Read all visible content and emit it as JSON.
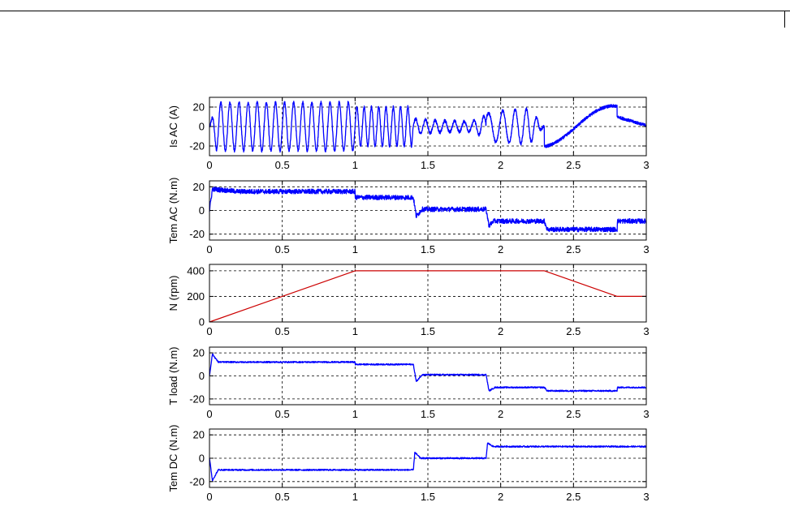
{
  "chart_data": [
    {
      "type": "line",
      "ylabel": "Is AC (A)",
      "xlim": [
        0,
        3
      ],
      "ylim": [
        -30,
        30
      ],
      "xticks": [
        "0",
        "0.5",
        "1",
        "1.5",
        "2",
        "2.5",
        "3"
      ],
      "yticks": [
        "20",
        "0",
        "-20"
      ],
      "grid": true,
      "color": "#0000ff",
      "series": [
        {
          "values": [
            {
              "x": 0,
              "y": 0
            },
            {
              "x": 0.05,
              "y": 25
            },
            {
              "x": 0.1,
              "y": 25
            },
            {
              "x": 0.3,
              "y": 25
            },
            {
              "x": 0.6,
              "y": 25
            },
            {
              "x": 0.99,
              "y": 25
            },
            {
              "x": 1.0,
              "y": 20
            },
            {
              "x": 1.2,
              "y": 20
            },
            {
              "x": 1.39,
              "y": 20
            },
            {
              "x": 1.4,
              "y": 8
            },
            {
              "x": 1.6,
              "y": 6
            },
            {
              "x": 1.8,
              "y": 5
            },
            {
              "x": 1.95,
              "y": 16
            },
            {
              "x": 2.2,
              "y": 18
            },
            {
              "x": 2.4,
              "y": -20
            },
            {
              "x": 2.65,
              "y": 21
            },
            {
              "x": 2.8,
              "y": 18
            },
            {
              "x": 2.85,
              "y": 10
            },
            {
              "x": 3.0,
              "y": 0
            }
          ]
        }
      ]
    },
    {
      "type": "line",
      "ylabel": "Tem AC (N.m)",
      "xlim": [
        0,
        3
      ],
      "ylim": [
        -25,
        25
      ],
      "xticks": [
        "0",
        "0.5",
        "1",
        "1.5",
        "2",
        "2.5",
        "3"
      ],
      "yticks": [
        "20",
        "0",
        "-20"
      ],
      "grid": true,
      "color": "#0000ff",
      "series": [
        {
          "values": [
            {
              "x": 0,
              "y": 0
            },
            {
              "x": 0.02,
              "y": 18
            },
            {
              "x": 0.2,
              "y": 16
            },
            {
              "x": 1.0,
              "y": 16
            },
            {
              "x": 1.0,
              "y": 11
            },
            {
              "x": 1.4,
              "y": 11
            },
            {
              "x": 1.42,
              "y": -5
            },
            {
              "x": 1.46,
              "y": 1
            },
            {
              "x": 1.9,
              "y": 1
            },
            {
              "x": 1.92,
              "y": -13
            },
            {
              "x": 1.95,
              "y": -9
            },
            {
              "x": 2.3,
              "y": -9
            },
            {
              "x": 2.32,
              "y": -16
            },
            {
              "x": 2.8,
              "y": -16
            },
            {
              "x": 2.8,
              "y": -9
            },
            {
              "x": 3.0,
              "y": -9
            }
          ]
        }
      ]
    },
    {
      "type": "line",
      "ylabel": "N (rpm)",
      "xlim": [
        0,
        3
      ],
      "ylim": [
        0,
        450
      ],
      "xticks": [
        "0",
        "0.5",
        "1",
        "1.5",
        "2",
        "2.5",
        "3"
      ],
      "yticks": [
        "400",
        "200",
        "0"
      ],
      "grid": true,
      "color": "#cc0000",
      "series": [
        {
          "values": [
            {
              "x": 0,
              "y": 0
            },
            {
              "x": 1.0,
              "y": 400
            },
            {
              "x": 2.3,
              "y": 400
            },
            {
              "x": 2.8,
              "y": 200
            },
            {
              "x": 3.0,
              "y": 200
            }
          ]
        }
      ]
    },
    {
      "type": "line",
      "ylabel": "T load (N.m)",
      "xlim": [
        0,
        3
      ],
      "ylim": [
        -25,
        25
      ],
      "xticks": [
        "0",
        "0.5",
        "1",
        "1.5",
        "2",
        "2.5",
        "3"
      ],
      "yticks": [
        "20",
        "0",
        "-20"
      ],
      "grid": true,
      "color": "#0000ff",
      "series": [
        {
          "values": [
            {
              "x": 0,
              "y": 0
            },
            {
              "x": 0.02,
              "y": 19
            },
            {
              "x": 0.06,
              "y": 12
            },
            {
              "x": 1.0,
              "y": 12
            },
            {
              "x": 1.0,
              "y": 10
            },
            {
              "x": 1.4,
              "y": 10
            },
            {
              "x": 1.42,
              "y": -5
            },
            {
              "x": 1.46,
              "y": 1
            },
            {
              "x": 1.9,
              "y": 1
            },
            {
              "x": 1.92,
              "y": -13
            },
            {
              "x": 1.96,
              "y": -10
            },
            {
              "x": 2.3,
              "y": -10
            },
            {
              "x": 2.32,
              "y": -13
            },
            {
              "x": 2.8,
              "y": -13
            },
            {
              "x": 2.8,
              "y": -10
            },
            {
              "x": 3.0,
              "y": -10
            }
          ]
        }
      ]
    },
    {
      "type": "line",
      "ylabel": "Tem DC (N.m)",
      "xlim": [
        0,
        3
      ],
      "ylim": [
        -25,
        25
      ],
      "xticks": [
        "0",
        "0.5",
        "1",
        "1.5",
        "2",
        "2.5",
        "3"
      ],
      "yticks": [
        "20",
        "0",
        "-20"
      ],
      "grid": true,
      "color": "#0000ff",
      "series": [
        {
          "values": [
            {
              "x": 0,
              "y": 0
            },
            {
              "x": 0.02,
              "y": -19
            },
            {
              "x": 0.06,
              "y": -10
            },
            {
              "x": 1.4,
              "y": -10
            },
            {
              "x": 1.41,
              "y": 5
            },
            {
              "x": 1.45,
              "y": 0
            },
            {
              "x": 1.9,
              "y": 0
            },
            {
              "x": 1.91,
              "y": 13
            },
            {
              "x": 1.95,
              "y": 10
            },
            {
              "x": 3.0,
              "y": 10
            }
          ]
        }
      ]
    }
  ]
}
